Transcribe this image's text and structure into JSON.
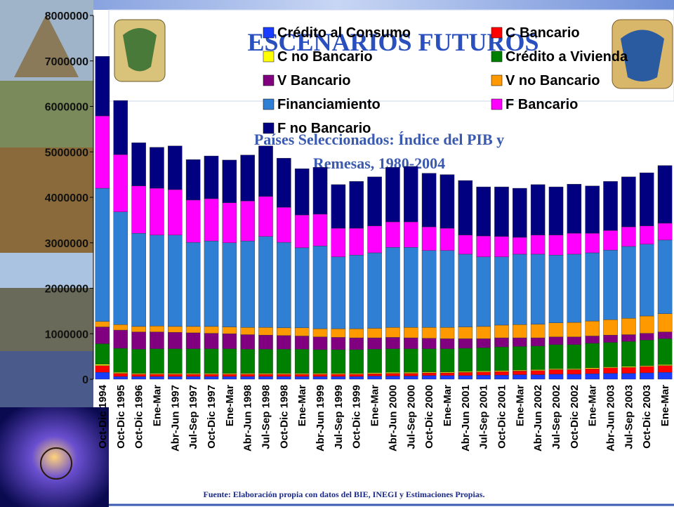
{
  "chart_data": {
    "type": "stacked_bar",
    "title": "ESCENARIOS FUTUROS",
    "subtitle": "Países Seleccionados: Índice del PIB y Remesas, 1980-2004",
    "source": "Fuente: Elaboración propia con datos del BIE, INEGI y Estimaciones Propias.",
    "categories": [
      "Oct-Dic 1994",
      "Oct-Dic 1995",
      "Oct-Dic 1996",
      "Ene-Mar",
      "Abr-Jun 1997",
      "Jul-Sep 1997",
      "Oct-Dic 1997",
      "Ene-Mar",
      "Abr-Jun 1998",
      "Jul-Sep 1998",
      "Oct-Dic 1998",
      "Ene-Mar",
      "Abr-Jun 1999",
      "Jul-Sep 1999",
      "Oct-Dic 1999",
      "Ene-Mar",
      "Abr-Jun 2000",
      "Jul-Sep 2000",
      "Oct-Dic 2000",
      "Ene-Mar",
      "Abr-Jun 2001",
      "Jul-Sep 2001",
      "Oct-Dic 2001",
      "Ene-Mar",
      "Abr-Jun 2002",
      "Jul-Sep 2002",
      "Oct-Dic 2002",
      "Ene-Mar",
      "Abr-Jun 2003",
      "Jul-Sep 2003",
      "Oct-Dic 2003",
      "Ene-Mar"
    ],
    "ylim": [
      0,
      8000000
    ],
    "yticks": [
      0,
      1000000,
      2000000,
      3000000,
      4000000,
      5000000,
      6000000,
      7000000,
      8000000
    ],
    "series": [
      {
        "name": "Crédito al Consumo",
        "color": "#1a3cff",
        "values": [
          150000,
          60000,
          60000,
          60000,
          60000,
          60000,
          60000,
          60000,
          60000,
          60000,
          60000,
          60000,
          60000,
          60000,
          60000,
          70000,
          70000,
          70000,
          80000,
          80000,
          80000,
          90000,
          90000,
          100000,
          100000,
          110000,
          110000,
          120000,
          130000,
          130000,
          140000,
          150000
        ]
      },
      {
        "name": "C Bancario",
        "color": "#ff0000",
        "values": [
          150000,
          70000,
          50000,
          50000,
          50000,
          50000,
          50000,
          50000,
          50000,
          50000,
          50000,
          50000,
          50000,
          50000,
          50000,
          50000,
          60000,
          60000,
          60000,
          60000,
          70000,
          70000,
          80000,
          80000,
          90000,
          100000,
          100000,
          110000,
          120000,
          130000,
          140000,
          150000
        ]
      },
      {
        "name": "C no Bancario",
        "color": "#ffff00",
        "values": [
          30000,
          20000,
          20000,
          20000,
          20000,
          20000,
          20000,
          20000,
          20000,
          20000,
          20000,
          20000,
          20000,
          20000,
          20000,
          20000,
          20000,
          20000,
          20000,
          20000,
          20000,
          20000,
          20000,
          20000,
          20000,
          20000,
          20000,
          20000,
          20000,
          20000,
          20000,
          20000
        ]
      },
      {
        "name": "Crédito a Vivienda",
        "color": "#008000",
        "values": [
          450000,
          530000,
          530000,
          540000,
          540000,
          540000,
          540000,
          540000,
          530000,
          530000,
          530000,
          530000,
          520000,
          520000,
          520000,
          520000,
          520000,
          520000,
          510000,
          510000,
          510000,
          510000,
          520000,
          520000,
          520000,
          530000,
          530000,
          540000,
          540000,
          550000,
          560000,
          570000
        ]
      },
      {
        "name": "V Bancario",
        "color": "#800080",
        "values": [
          370000,
          400000,
          380000,
          370000,
          360000,
          350000,
          340000,
          330000,
          320000,
          310000,
          300000,
          290000,
          280000,
          270000,
          260000,
          250000,
          250000,
          240000,
          230000,
          220000,
          210000,
          200000,
          200000,
          190000,
          180000,
          170000,
          170000,
          160000,
          160000,
          150000,
          150000,
          150000
        ]
      },
      {
        "name": "V no Bancario",
        "color": "#ff9900",
        "values": [
          120000,
          120000,
          120000,
          130000,
          130000,
          140000,
          150000,
          150000,
          160000,
          170000,
          170000,
          180000,
          180000,
          190000,
          200000,
          210000,
          220000,
          230000,
          240000,
          250000,
          260000,
          270000,
          280000,
          290000,
          300000,
          310000,
          320000,
          330000,
          340000,
          360000,
          380000,
          400000
        ]
      },
      {
        "name": "Financiamiento",
        "color": "#2f7fd4",
        "values": [
          2930000,
          2480000,
          2050000,
          2000000,
          2010000,
          1850000,
          1880000,
          1850000,
          1900000,
          2000000,
          1880000,
          1760000,
          1820000,
          1580000,
          1620000,
          1660000,
          1760000,
          1760000,
          1690000,
          1690000,
          1600000,
          1530000,
          1500000,
          1550000,
          1540000,
          1490000,
          1500000,
          1500000,
          1530000,
          1580000,
          1580000,
          1620000
        ]
      },
      {
        "name": "F Bancario",
        "color": "#ff00ff",
        "values": [
          1590000,
          1260000,
          1040000,
          1030000,
          1000000,
          930000,
          930000,
          880000,
          880000,
          880000,
          770000,
          720000,
          700000,
          630000,
          590000,
          590000,
          560000,
          560000,
          520000,
          490000,
          420000,
          460000,
          450000,
          370000,
          420000,
          440000,
          460000,
          430000,
          430000,
          430000,
          400000,
          370000
        ]
      },
      {
        "name": "F no Bancario",
        "color": "#000080",
        "values": [
          1310000,
          1190000,
          950000,
          900000,
          960000,
          890000,
          940000,
          940000,
          1010000,
          1110000,
          1080000,
          1020000,
          1030000,
          960000,
          1030000,
          1080000,
          1200000,
          1220000,
          1180000,
          1180000,
          1200000,
          1080000,
          1090000,
          1080000,
          1110000,
          1060000,
          1080000,
          1040000,
          1080000,
          1100000,
          1170000,
          1270000
        ]
      }
    ]
  }
}
